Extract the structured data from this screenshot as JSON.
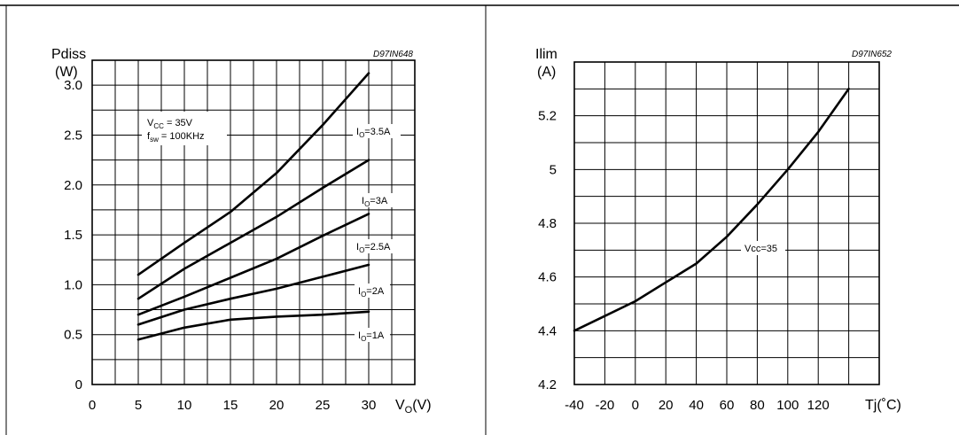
{
  "chart_data": [
    {
      "type": "line",
      "code": "D97IN648",
      "ylabel_name": "Pdiss",
      "ylabel_unit": "(W)",
      "xlabel_var": "V",
      "xlabel_sub": "O",
      "xlabel_unit": "(V)",
      "xlim": [
        0,
        35
      ],
      "ylim": [
        0,
        3.25
      ],
      "xtick_values": [
        0,
        5,
        10,
        15,
        20,
        25,
        30
      ],
      "xtick_labels": [
        "0",
        "5",
        "10",
        "15",
        "20",
        "25",
        "30"
      ],
      "ytick_values": [
        0,
        0.5,
        1.0,
        1.5,
        2.0,
        2.5,
        3.0
      ],
      "ytick_labels": [
        "0",
        "0.5",
        "1.0",
        "1.5",
        "2.0",
        "2.5",
        "3.0"
      ],
      "grid": true,
      "note": {
        "vcc_var": "V",
        "vcc_sub": "CC",
        "vcc_val": " = 35V",
        "fsw_var": "f",
        "fsw_sub": "sw",
        "fsw_val": " = 100KHz"
      },
      "series": [
        {
          "label_var": "I",
          "label_sub": "O",
          "label_val": "=3.5A",
          "x": [
            5,
            10,
            15,
            20,
            25,
            30
          ],
          "y": [
            1.1,
            1.42,
            1.73,
            2.12,
            2.6,
            3.12
          ]
        },
        {
          "label_var": "I",
          "label_sub": "O",
          "label_val": "=3A",
          "x": [
            5,
            10,
            15,
            20,
            25,
            30
          ],
          "y": [
            0.86,
            1.16,
            1.42,
            1.68,
            1.97,
            2.25
          ]
        },
        {
          "label_var": "I",
          "label_sub": "O",
          "label_val": "=2.5A",
          "x": [
            5,
            10,
            15,
            20,
            25,
            30
          ],
          "y": [
            0.7,
            0.88,
            1.07,
            1.26,
            1.49,
            1.71
          ]
        },
        {
          "label_var": "I",
          "label_sub": "O",
          "label_val": "=2A",
          "x": [
            5,
            10,
            15,
            20,
            25,
            30
          ],
          "y": [
            0.6,
            0.75,
            0.86,
            0.96,
            1.08,
            1.2
          ]
        },
        {
          "label_var": "I",
          "label_sub": "O",
          "label_val": "=1A",
          "x": [
            5,
            10,
            15,
            20,
            25,
            30
          ],
          "y": [
            0.45,
            0.57,
            0.65,
            0.68,
            0.7,
            0.73
          ]
        }
      ]
    },
    {
      "type": "line",
      "code": "D97IN652",
      "ylabel_name": "Ilim",
      "ylabel_unit": "(A)",
      "xlabel": "Tj(˚C)",
      "xlim": [
        -40,
        160
      ],
      "ylim": [
        4.2,
        5.4
      ],
      "xtick_values": [
        -40,
        -20,
        0,
        20,
        40,
        60,
        80,
        100,
        120
      ],
      "xtick_labels": [
        "-40",
        "-20",
        "0",
        "20",
        "40",
        "60",
        "80",
        "100",
        "120"
      ],
      "ytick_values": [
        4.2,
        4.4,
        4.6,
        4.8,
        5.0,
        5.2
      ],
      "ytick_labels": [
        "4.2",
        "4.4",
        "4.6",
        "4.8",
        "5",
        "5.2"
      ],
      "grid": true,
      "series": [
        {
          "name": "Vcc=35",
          "x": [
            -40,
            -20,
            0,
            20,
            40,
            60,
            80,
            100,
            120,
            140
          ],
          "y": [
            4.4,
            4.455,
            4.51,
            4.58,
            4.65,
            4.75,
            4.87,
            5.0,
            5.14,
            5.3
          ]
        }
      ]
    }
  ]
}
